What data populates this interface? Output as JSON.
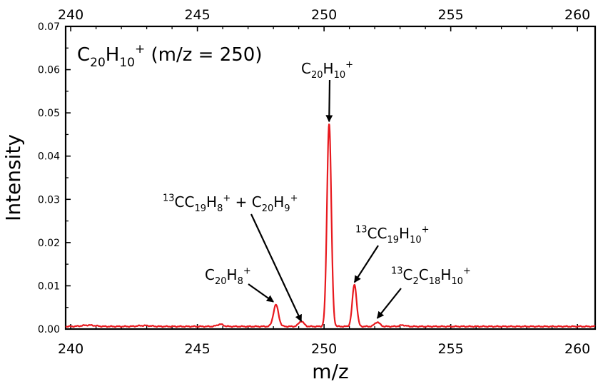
{
  "chart_data": {
    "type": "line",
    "title_formula": {
      "base": "C",
      "n1": "20",
      "mid": "H",
      "n2": "10",
      "charge": "+",
      "suffix": " (m/z = 250)"
    },
    "xlabel": "m/z",
    "ylabel": "Intensity",
    "xlim": [
      239.8,
      260.7
    ],
    "ylim": [
      0,
      0.07
    ],
    "xticks": [
      240,
      245,
      250,
      255,
      260
    ],
    "yticks": [
      "0.00",
      "0.01",
      "0.02",
      "0.03",
      "0.04",
      "0.05",
      "0.06",
      "0.07"
    ],
    "xtick_labels": [
      "240",
      "245",
      "250",
      "255",
      "260"
    ],
    "top_axis_labels": [
      "240",
      "245",
      "250",
      "255",
      "260"
    ],
    "grid": false,
    "line_color": "#e8191e",
    "baseline": 0.0006,
    "peaks": [
      {
        "mz": 240.7,
        "intensity": 0.0003,
        "width": 0.25
      },
      {
        "mz": 242.9,
        "intensity": 0.0002,
        "width": 0.25
      },
      {
        "mz": 245.9,
        "intensity": 0.0005,
        "width": 0.12
      },
      {
        "mz": 248.1,
        "intensity": 0.005,
        "width": 0.1
      },
      {
        "mz": 249.1,
        "intensity": 0.0012,
        "width": 0.1
      },
      {
        "mz": 250.2,
        "intensity": 0.047,
        "width": 0.085
      },
      {
        "mz": 251.2,
        "intensity": 0.0097,
        "width": 0.085
      },
      {
        "mz": 252.1,
        "intensity": 0.001,
        "width": 0.1
      },
      {
        "mz": 253.1,
        "intensity": 0.0003,
        "width": 0.12
      }
    ],
    "annotations": [
      {
        "id": "c20h8",
        "segments": [
          {
            "t": "C"
          },
          {
            "t": "20",
            "s": "sub"
          },
          {
            "t": "H"
          },
          {
            "t": "8",
            "s": "sub"
          },
          {
            "t": "+",
            "s": "sup"
          }
        ],
        "target_mz": 248.0,
        "target_y": 0.0063
      },
      {
        "id": "13c-c19h8-c20h9",
        "segments": [
          {
            "t": "13",
            "s": "sup"
          },
          {
            "t": "CC"
          },
          {
            "t": "19",
            "s": "sub"
          },
          {
            "t": "H"
          },
          {
            "t": "8",
            "s": "sub"
          },
          {
            "t": "+",
            "s": "sup"
          },
          {
            "t": " + C"
          },
          {
            "t": "20",
            "s": "sub"
          },
          {
            "t": "H"
          },
          {
            "t": "9",
            "s": "sub"
          },
          {
            "t": "+",
            "s": "sup"
          }
        ],
        "target_mz": 249.1,
        "target_y": 0.0018
      },
      {
        "id": "c20h10",
        "segments": [
          {
            "t": "C"
          },
          {
            "t": "20",
            "s": "sub"
          },
          {
            "t": "H"
          },
          {
            "t": "10",
            "s": "sub"
          },
          {
            "t": "+",
            "s": "sup"
          }
        ],
        "target_mz": 250.2,
        "target_y": 0.048
      },
      {
        "id": "13c-c19h10",
        "segments": [
          {
            "t": "13",
            "s": "sup"
          },
          {
            "t": "CC"
          },
          {
            "t": "19",
            "s": "sub"
          },
          {
            "t": "H"
          },
          {
            "t": "10",
            "s": "sub"
          },
          {
            "t": "+",
            "s": "sup"
          }
        ],
        "target_mz": 251.2,
        "target_y": 0.0108
      },
      {
        "id": "13c2-c18h10",
        "segments": [
          {
            "t": "13",
            "s": "sup"
          },
          {
            "t": "C"
          },
          {
            "t": "2",
            "s": "sub"
          },
          {
            "t": "C"
          },
          {
            "t": "18",
            "s": "sub"
          },
          {
            "t": "H"
          },
          {
            "t": "10",
            "s": "sub"
          },
          {
            "t": "+",
            "s": "sup"
          }
        ],
        "target_mz": 252.1,
        "target_y": 0.0025
      }
    ]
  }
}
